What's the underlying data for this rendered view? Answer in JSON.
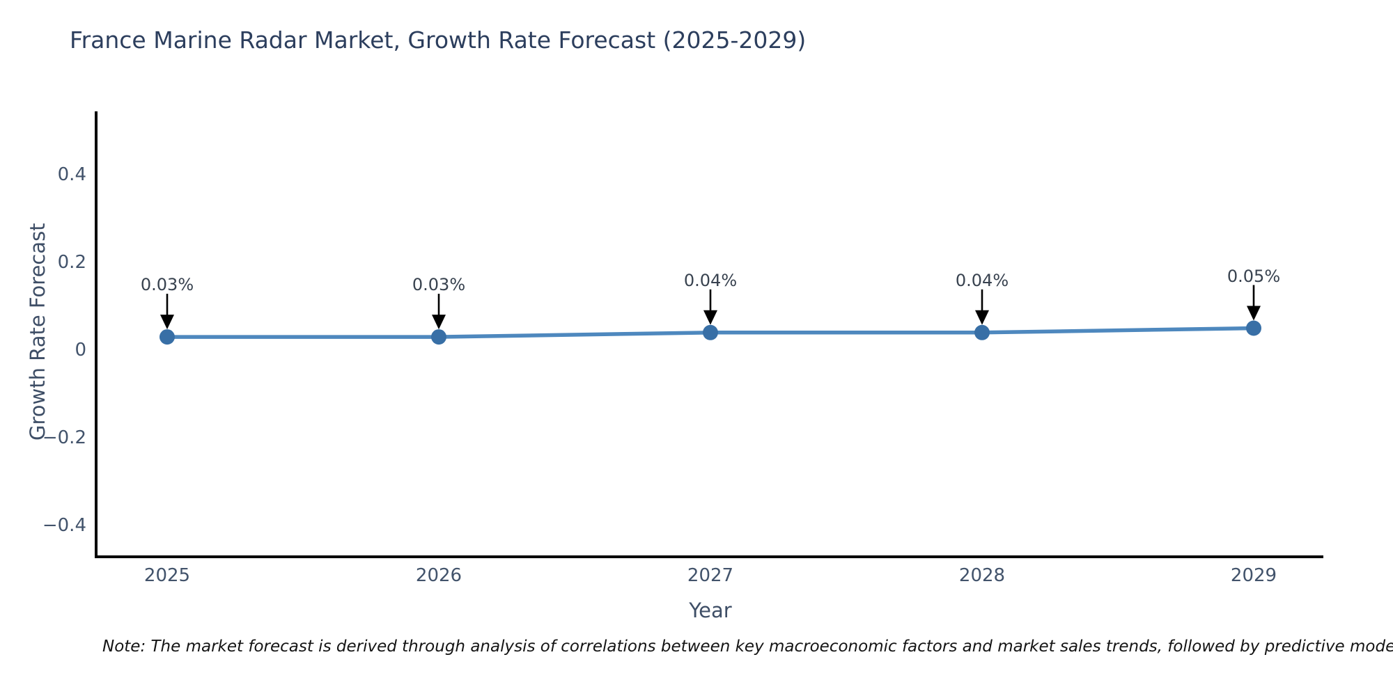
{
  "title": "France Marine Radar Market, Growth Rate Forecast (2025-2029)",
  "note": "Note: The market forecast is derived through analysis of correlations between key macroeconomic factors and market sales trends, followed by predictive modeling to project future sales",
  "chart_data": {
    "type": "line",
    "title": "France Marine Radar Market, Growth Rate Forecast (2025-2029)",
    "xlabel": "Year",
    "ylabel": "Growth Rate Forecast",
    "x": [
      2025,
      2026,
      2027,
      2028,
      2029
    ],
    "y": [
      0.03,
      0.03,
      0.04,
      0.04,
      0.05
    ],
    "series": [
      {
        "name": "Growth Rate Forecast",
        "values": [
          0.03,
          0.03,
          0.04,
          0.04,
          0.05
        ]
      }
    ],
    "annotations": [
      "0.03%",
      "0.03%",
      "0.04%",
      "0.04%",
      "0.05%"
    ],
    "xtick_labels": [
      "2025",
      "2026",
      "2027",
      "2028",
      "2029"
    ],
    "ytick_values": [
      0.4,
      0.2,
      0,
      -0.2,
      -0.4
    ],
    "ytick_labels": [
      "0.4",
      "0.2",
      "0",
      "−0.2",
      "−0.4"
    ],
    "ylim": [
      -0.47,
      0.54
    ],
    "xlim": [
      2024.74,
      2029.26
    ],
    "grid": false,
    "legend": "none",
    "line_color": "#4e88be",
    "marker_color": "#386fa6",
    "arrow_color": "#000000",
    "axis_color": "#000000"
  }
}
